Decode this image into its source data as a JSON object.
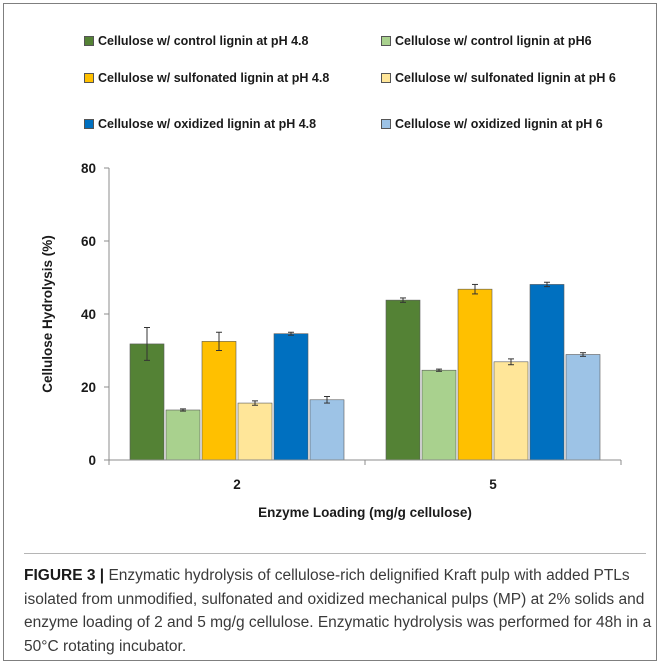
{
  "chart_data": {
    "type": "bar",
    "xlabel": "Enzyme Loading (mg/g cellulose)",
    "ylabel": "Cellulose Hydrolysis (%)",
    "ylim": [
      0,
      80
    ],
    "yticks": [
      "0",
      "20",
      "40",
      "60",
      "80"
    ],
    "categories": [
      "2",
      "5"
    ],
    "grid": false,
    "legend_position": "top",
    "series": [
      {
        "name": "Cellulose w/ control lignin at pH 4.8",
        "color": "#548235",
        "values": [
          31.8,
          43.8
        ],
        "errors": [
          4.5,
          0.6
        ]
      },
      {
        "name": "Cellulose w/ control lignin at pH6",
        "color": "#a9d18e",
        "values": [
          13.7,
          24.6
        ],
        "errors": [
          0.3,
          0.3
        ]
      },
      {
        "name": "Cellulose w/ sulfonated lignin at pH 4.8",
        "color": "#ffc000",
        "values": [
          32.5,
          46.8
        ],
        "errors": [
          2.5,
          1.3
        ]
      },
      {
        "name": "Cellulose w/ sulfonated lignin at pH 6",
        "color": "#ffe699",
        "values": [
          15.6,
          26.9
        ],
        "errors": [
          0.6,
          0.8
        ]
      },
      {
        "name": "Cellulose w/ oxidized lignin at pH 4.8",
        "color": "#0070c0",
        "values": [
          34.6,
          48.1
        ],
        "errors": [
          0.4,
          0.6
        ]
      },
      {
        "name": "Cellulose w/ oxidized lignin at pH 6",
        "color": "#9dc3e6",
        "values": [
          16.5,
          28.9
        ],
        "errors": [
          0.9,
          0.5
        ]
      }
    ]
  },
  "caption": {
    "label": "FIGURE 3 |",
    "text": "Enzymatic hydrolysis of cellulose-rich delignified Kraft pulp with added PTLs isolated from unmodified, sulfonated and oxidized mechanical pulps (MP) at 2% solids and enzyme loading of 2 and 5 mg/g cellulose. Enzymatic hydrolysis was performed for 48h in a 50°C rotating incubator."
  }
}
